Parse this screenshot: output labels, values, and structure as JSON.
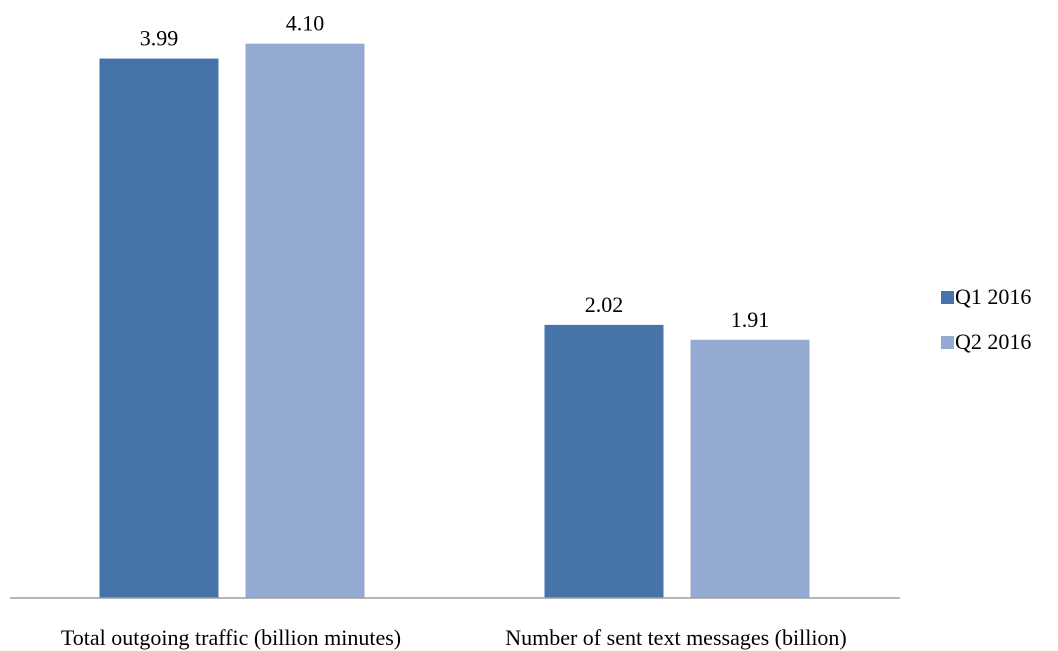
{
  "chart_data": {
    "type": "bar",
    "categories": [
      "Total outgoing traffic (billion minutes)",
      "Number of sent text messages (billion)"
    ],
    "series": [
      {
        "name": "Q1 2016",
        "values": [
          3.99,
          2.02
        ],
        "value_labels": [
          "3.99",
          "2.02"
        ],
        "color": "#4674a8"
      },
      {
        "name": "Q2 2016",
        "values": [
          4.1,
          1.91
        ],
        "value_labels": [
          "4.10",
          "1.91"
        ],
        "color": "#95aad2"
      }
    ],
    "title": "",
    "xlabel": "",
    "ylabel": "",
    "ylim": [
      0,
      4.5
    ],
    "grid": false,
    "legend_position": "right"
  }
}
